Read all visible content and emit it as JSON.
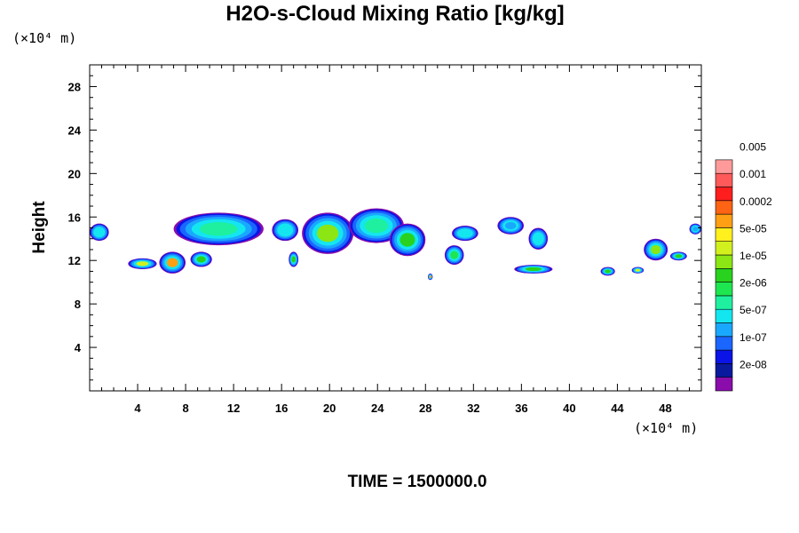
{
  "chart_data": {
    "type": "heatmap",
    "title": "H2O-s-Cloud Mixing Ratio [kg/kg]",
    "ylabel": "Height",
    "x_unit_label": "(×10⁴ m)",
    "y_unit_label": "(×10⁴ m)",
    "xlim": [
      0,
      51
    ],
    "ylim": [
      0,
      30
    ],
    "x_ticks": [
      "4",
      "8",
      "12",
      "16",
      "20",
      "24",
      "28",
      "32",
      "36",
      "40",
      "44",
      "48"
    ],
    "y_ticks": [
      "4",
      "8",
      "12",
      "16",
      "20",
      "24",
      "28"
    ],
    "colorbar": {
      "labels": [
        "0.005",
        "0.001",
        "0.0002",
        "5e-05",
        "1e-05",
        "2e-06",
        "5e-07",
        "1e-07",
        "2e-08"
      ],
      "colors": [
        "#8a0dab",
        "#0a1a9e",
        "#0a14e6",
        "#1a66ff",
        "#1aa8ff",
        "#14e6f0",
        "#1ef0a0",
        "#1ee650",
        "#28d21e",
        "#8ce614",
        "#d2f01e",
        "#fff01e",
        "#ffa014",
        "#ff6414",
        "#ff1e1e",
        "#ff5a5a",
        "#ff9a9a"
      ]
    },
    "cloud_regions": [
      {
        "x": [
          0,
          1.6
        ],
        "y": [
          13.8,
          15.4
        ],
        "core": "#14e6f0"
      },
      {
        "x": [
          7,
          14.5
        ],
        "y": [
          13.4,
          16.4
        ],
        "core": "#1ef0a0"
      },
      {
        "x": [
          15.2,
          17.4
        ],
        "y": [
          13.8,
          15.8
        ],
        "core": "#14e6f0"
      },
      {
        "x": [
          17.7,
          22
        ],
        "y": [
          12.6,
          16.4
        ],
        "core": "#8ce614"
      },
      {
        "x": [
          21.6,
          26.2
        ],
        "y": [
          13.6,
          16.8
        ],
        "core": "#1ef0a0"
      },
      {
        "x": [
          25,
          28
        ],
        "y": [
          12.4,
          15.4
        ],
        "core": "#28d21e"
      },
      {
        "x": [
          29.6,
          31.2
        ],
        "y": [
          11.6,
          13.4
        ],
        "core": "#1ee650"
      },
      {
        "x": [
          30.2,
          32.4
        ],
        "y": [
          13.8,
          15.2
        ],
        "core": "#14e6f0"
      },
      {
        "x": [
          34,
          36.2
        ],
        "y": [
          14.4,
          16.0
        ],
        "core": "#1aa8ff"
      },
      {
        "x": [
          36.6,
          38.2
        ],
        "y": [
          13.0,
          15.0
        ],
        "core": "#14e6f0"
      },
      {
        "x": [
          50,
          51
        ],
        "y": [
          14.4,
          15.4
        ],
        "core": "#1aa8ff"
      },
      {
        "x": [
          3.2,
          5.6
        ],
        "y": [
          11.2,
          12.2
        ],
        "core": "#d2f01e"
      },
      {
        "x": [
          5.8,
          8
        ],
        "y": [
          10.8,
          12.8
        ],
        "core": "#ffa014"
      },
      {
        "x": [
          8.4,
          10.2
        ],
        "y": [
          11.4,
          12.8
        ],
        "core": "#28d21e"
      },
      {
        "x": [
          16.6,
          17.4
        ],
        "y": [
          11.4,
          12.8
        ],
        "core": "#28d21e"
      },
      {
        "x": [
          35.4,
          38.6
        ],
        "y": [
          10.8,
          11.6
        ],
        "core": "#28d21e"
      },
      {
        "x": [
          42.6,
          43.8
        ],
        "y": [
          10.6,
          11.4
        ],
        "core": "#28d21e"
      },
      {
        "x": [
          45.2,
          46.2
        ],
        "y": [
          10.8,
          11.4
        ],
        "core": "#d2f01e"
      },
      {
        "x": [
          46.2,
          48.2
        ],
        "y": [
          12.0,
          14.0
        ],
        "core": "#8ce614"
      },
      {
        "x": [
          48.4,
          49.8
        ],
        "y": [
          12.0,
          12.8
        ],
        "core": "#28d21e"
      },
      {
        "x": [
          28.2,
          28.6
        ],
        "y": [
          10.2,
          10.8
        ],
        "core": "#ffa014"
      }
    ]
  },
  "footer": {
    "time_label": "TIME = 1500000.0"
  }
}
